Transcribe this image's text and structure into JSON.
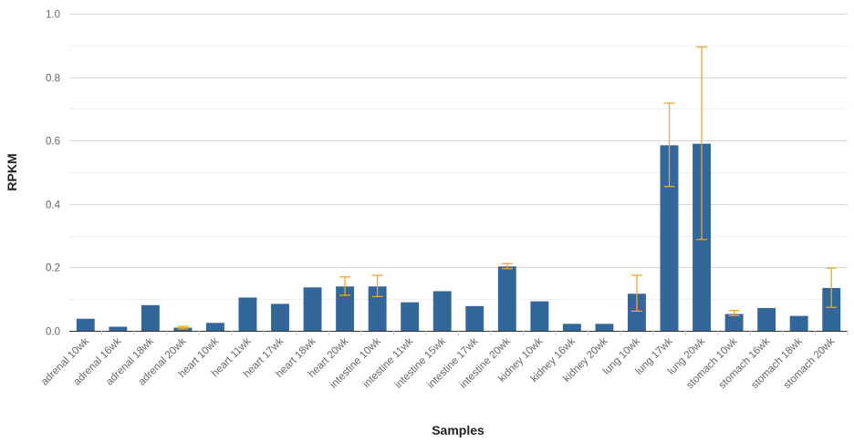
{
  "chart_data": {
    "type": "bar",
    "xlabel": "Samples",
    "ylabel": "RPKM",
    "ylim": [
      0,
      1.0
    ],
    "yticks": [
      0.0,
      0.2,
      0.4,
      0.6,
      0.8,
      1.0
    ],
    "ytick_labels": [
      "0.0",
      "0.2",
      "0.4",
      "0.6",
      "0.8",
      "1.0"
    ],
    "grid": true,
    "bar_color": "#336699",
    "error_color": "#f5a623",
    "categories": [
      "adrenal 10wk",
      "adrenal 16wk",
      "adrenal 18wk",
      "adrenal 20wk",
      "heart 10wk",
      "heart 11wk",
      "heart 17wk",
      "heart 18wk",
      "heart 20wk",
      "intestine 10wk",
      "intestine 11wk",
      "intestine 15wk",
      "intestine 17wk",
      "intestine 20wk",
      "kidney 10wk",
      "kidney 16wk",
      "kidney 20wk",
      "lung 10wk",
      "lung 17wk",
      "lung 20wk",
      "stomach 10wk",
      "stomach 16wk",
      "stomach 18wk",
      "stomach 20wk"
    ],
    "values": [
      0.038,
      0.013,
      0.081,
      0.01,
      0.025,
      0.105,
      0.085,
      0.137,
      0.14,
      0.14,
      0.09,
      0.125,
      0.078,
      0.203,
      0.093,
      0.022,
      0.022,
      0.117,
      0.585,
      0.59,
      0.053,
      0.072,
      0.047,
      0.135
    ],
    "error_low": [
      null,
      null,
      null,
      0.006,
      null,
      null,
      null,
      null,
      0.112,
      0.108,
      null,
      null,
      null,
      0.196,
      null,
      null,
      null,
      0.062,
      0.455,
      0.288,
      0.048,
      null,
      null,
      0.074
    ],
    "error_high": [
      null,
      null,
      null,
      0.014,
      null,
      null,
      null,
      null,
      0.17,
      0.175,
      null,
      null,
      null,
      0.212,
      null,
      null,
      null,
      0.175,
      0.718,
      0.895,
      0.064,
      null,
      null,
      0.198
    ]
  }
}
